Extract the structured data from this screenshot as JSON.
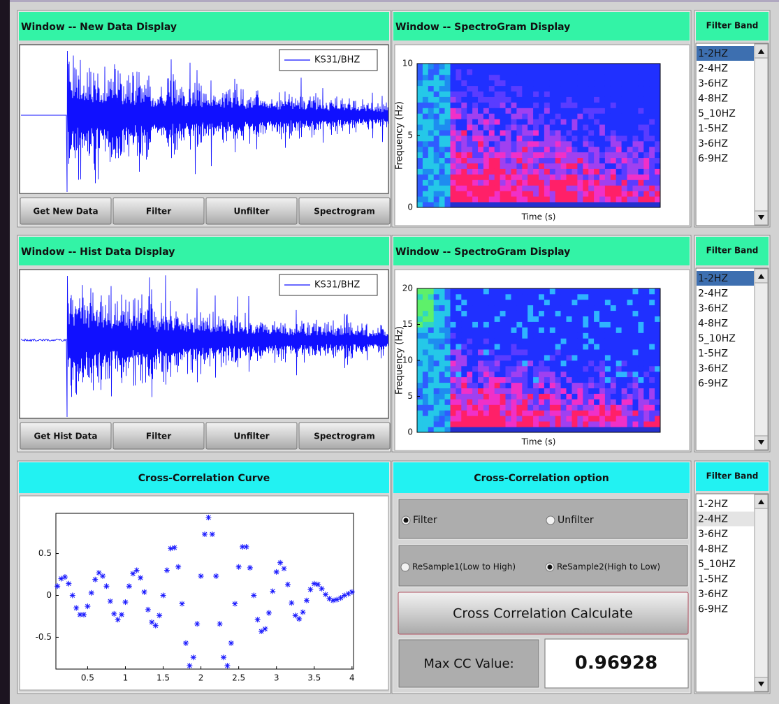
{
  "rows": [
    {
      "waveform": {
        "title": "Window -- New Data Display",
        "legend": "KS31/BHZ",
        "buttons": [
          "Get New Data",
          "Filter",
          "Unfilter",
          "Spectrogram"
        ]
      },
      "spectrogram": {
        "title": "Window -- SpectroGram Display",
        "ylabel": "Frequency (Hz)",
        "xlabel": "Time (s)",
        "ylim": [
          0,
          10
        ],
        "yticks": [
          0,
          5,
          10
        ]
      },
      "filter_band": {
        "title": "Filter Band",
        "items": [
          "1-2HZ",
          "2-4HZ",
          "3-6HZ",
          "4-8HZ",
          "5_10HZ",
          "1-5HZ",
          "3-6HZ",
          "6-9HZ"
        ],
        "selected": 0
      }
    },
    {
      "waveform": {
        "title": "Window -- Hist Data Display",
        "legend": "KS31/BHZ",
        "buttons": [
          "Get Hist Data",
          "Filter",
          "Unfilter",
          "Spectrogram"
        ]
      },
      "spectrogram": {
        "title": "Window -- SpectroGram Display",
        "ylabel": "Frequency (Hz)",
        "xlabel": "Time (s)",
        "ylim": [
          0,
          20
        ],
        "yticks": [
          0,
          5,
          10,
          15,
          20
        ]
      },
      "filter_band": {
        "title": "Filter Band",
        "items": [
          "1-2HZ",
          "2-4HZ",
          "3-6HZ",
          "4-8HZ",
          "5_10HZ",
          "1-5HZ",
          "3-6HZ",
          "6-9HZ"
        ],
        "selected": 0
      }
    }
  ],
  "cross_correlation": {
    "title": "Cross-Correlation Curve",
    "chart_data": {
      "type": "scatter",
      "color": "#1a1aff",
      "x": [
        0.1,
        0.15,
        0.2,
        0.25,
        0.3,
        0.35,
        0.4,
        0.45,
        0.5,
        0.55,
        0.6,
        0.65,
        0.7,
        0.75,
        0.8,
        0.85,
        0.9,
        0.95,
        1.0,
        1.05,
        1.1,
        1.15,
        1.2,
        1.25,
        1.3,
        1.35,
        1.4,
        1.45,
        1.5,
        1.55,
        1.6,
        1.65,
        1.7,
        1.75,
        1.8,
        1.85,
        1.9,
        1.95,
        2.0,
        2.05,
        2.1,
        2.15,
        2.2,
        2.25,
        2.3,
        2.35,
        2.4,
        2.45,
        2.5,
        2.55,
        2.6,
        2.65,
        2.7,
        2.75,
        2.8,
        2.85,
        2.9,
        2.95,
        3.0,
        3.05,
        3.1,
        3.15,
        3.2,
        3.25,
        3.3,
        3.35,
        3.4,
        3.45,
        3.5,
        3.55,
        3.6,
        3.65,
        3.7,
        3.75,
        3.8,
        3.85,
        3.9,
        3.95,
        4.0
      ],
      "values": [
        0.11,
        0.2,
        0.22,
        0.14,
        0,
        -0.15,
        -0.23,
        -0.23,
        -0.13,
        0.03,
        0.19,
        0.27,
        0.23,
        0.11,
        -0.07,
        -0.22,
        -0.29,
        -0.23,
        -0.08,
        0.11,
        0.26,
        0.3,
        0.21,
        0.04,
        -0.17,
        -0.32,
        -0.36,
        -0.24,
        0,
        0.3,
        0.56,
        0.57,
        0.34,
        -0.1,
        -0.57,
        -0.84,
        -0.74,
        -0.34,
        0.23,
        0.73,
        0.93,
        0.73,
        0.23,
        -0.34,
        -0.74,
        -0.84,
        -0.57,
        -0.1,
        0.34,
        0.58,
        0.58,
        0.33,
        0,
        -0.29,
        -0.43,
        -0.4,
        -0.21,
        0.05,
        0.28,
        0.39,
        0.32,
        0.13,
        -0.09,
        -0.24,
        -0.28,
        -0.2,
        -0.06,
        0.07,
        0.14,
        0.13,
        0.08,
        0.01,
        -0.04,
        -0.06,
        -0.05,
        -0.03,
        0,
        0.02,
        0.04
      ],
      "xlim": [
        0.08,
        4.02
      ],
      "ylim": [
        -0.88,
        0.98
      ],
      "xticks": [
        0.5,
        1,
        1.5,
        2,
        2.5,
        3,
        3.5,
        4
      ],
      "yticks": [
        -0.5,
        0,
        0.5
      ]
    }
  },
  "cc_option": {
    "title": "Cross-Correlation option",
    "filter_radios": [
      {
        "label": "Filter",
        "checked": true
      },
      {
        "label": "Unfilter",
        "checked": false
      }
    ],
    "resample_radios": [
      {
        "label": "ReSample1(Low to High)",
        "checked": false
      },
      {
        "label": "ReSample2(High to Low)",
        "checked": true
      }
    ],
    "button": "Cross Correlation Calculate",
    "max_label": "Max CC Value:",
    "max_value": 0.96928
  },
  "cc_filter_band": {
    "title": "Filter Band",
    "items": [
      "1-2HZ",
      "2-4HZ",
      "3-6HZ",
      "4-8HZ",
      "5_10HZ",
      "1-5HZ",
      "3-6HZ",
      "6-9HZ"
    ],
    "selected": 1
  }
}
